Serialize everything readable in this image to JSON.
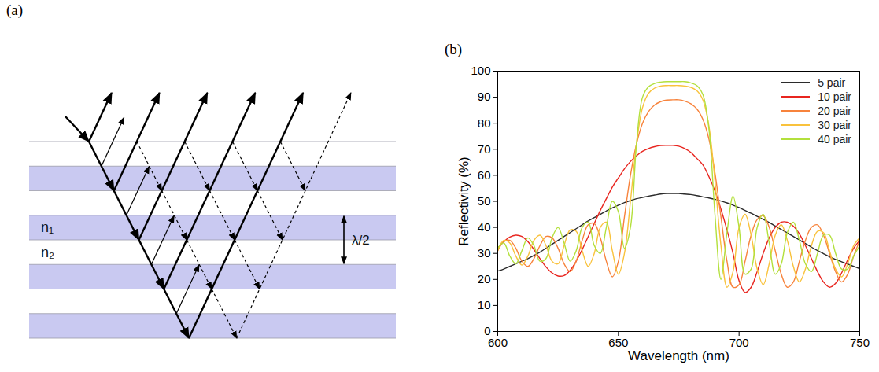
{
  "panel_labels": [
    "(a)",
    "(b)"
  ],
  "diagram": {
    "layer_labels": [
      "n₁",
      "n₂"
    ],
    "period_label": "λ/2"
  },
  "chart_data": {
    "type": "line",
    "x_label": "Wavelength (nm)",
    "y_label": "Reflectivity (%)",
    "xlim": [
      600,
      750
    ],
    "ylim": [
      0,
      100
    ],
    "xticks": [
      600,
      650,
      700,
      750
    ],
    "yticks": [
      0,
      10,
      20,
      30,
      40,
      50,
      60,
      70,
      80,
      90,
      100
    ],
    "grid": false,
    "legend": "top-right",
    "x": [
      600,
      602.5,
      605,
      607.5,
      610,
      612.5,
      615,
      617.5,
      620,
      622.5,
      625,
      627.5,
      630,
      632.5,
      635,
      637.5,
      640,
      642.5,
      645,
      647.5,
      650,
      652.5,
      655,
      657.5,
      660,
      662.5,
      665,
      667.5,
      670,
      672.5,
      675,
      677.5,
      680,
      682.5,
      685,
      687.5,
      690,
      692.5,
      695,
      697.5,
      700,
      702.5,
      705,
      707.5,
      710,
      712.5,
      715,
      717.5,
      720,
      722.5,
      725,
      727.5,
      730,
      732.5,
      735,
      737.5,
      740,
      742.5,
      745,
      747.5,
      750
    ],
    "series": [
      {
        "name": "5 pair",
        "color": "#2b2b2b",
        "values": [
          23.2,
          24,
          25,
          26,
          27,
          28,
          29.2,
          30.5,
          32,
          33.5,
          35,
          36.5,
          38,
          39.5,
          41,
          42.5,
          43.8,
          45,
          46.3,
          47.5,
          48.5,
          49.5,
          50.3,
          51,
          51.5,
          52,
          52.4,
          52.8,
          53,
          53,
          53,
          52.8,
          52.6,
          52.2,
          51.7,
          51.3,
          50.8,
          50.1,
          49.4,
          48.5,
          47.6,
          46.5,
          45.4,
          44.2,
          43.1,
          41.9,
          40.5,
          39.2,
          37.9,
          36.5,
          35.2,
          33.8,
          32.4,
          31.1,
          29.9,
          28.7,
          27.7,
          26.8,
          25.9,
          25,
          24.1
        ]
      },
      {
        "name": "10 pair",
        "color": "#e8251f",
        "values": [
          32,
          34.5,
          36.3,
          37,
          36.5,
          34.5,
          31.5,
          28,
          24.8,
          22.5,
          21.3,
          21.5,
          23.5,
          27,
          31.5,
          36.5,
          41.5,
          46.5,
          51,
          55.5,
          59,
          62.5,
          65.3,
          67.5,
          69.2,
          70.3,
          71,
          71.4,
          71.5,
          71.5,
          71.2,
          70.3,
          68.8,
          66.5,
          64,
          59.5,
          54,
          47,
          39,
          30,
          19.5,
          15,
          17,
          23,
          30,
          36,
          40,
          42,
          42,
          40.5,
          37.5,
          33,
          28,
          23,
          19,
          17,
          18.5,
          22.5,
          27.5,
          32,
          35
        ]
      },
      {
        "name": "20 pair",
        "color": "#f7833c",
        "values": [
          31,
          34.5,
          35,
          32,
          27,
          25,
          28,
          33,
          36.5,
          36,
          32,
          26,
          23,
          27,
          35,
          41,
          41.5,
          36,
          27,
          21,
          27,
          44,
          60,
          72,
          80,
          84.5,
          87,
          88.3,
          88.9,
          89,
          89,
          88.5,
          87.5,
          85.5,
          81.5,
          74,
          61,
          44,
          27,
          17,
          18,
          27,
          37,
          43,
          44.5,
          40,
          31,
          22,
          17,
          19,
          27,
          35,
          40,
          41,
          37,
          30,
          23,
          19,
          22,
          29,
          35
        ]
      },
      {
        "name": "30 pair",
        "color": "#f9c23c",
        "values": [
          31,
          35,
          34,
          29,
          25.5,
          29,
          35,
          37,
          33,
          27,
          26,
          33,
          39,
          38.5,
          31,
          25,
          30,
          40,
          42,
          31,
          22,
          30,
          50,
          72,
          86,
          91.5,
          93.5,
          94.3,
          94.5,
          94.5,
          94.5,
          94.3,
          93.8,
          92.5,
          89,
          79,
          58,
          33,
          17,
          23,
          40,
          45,
          37,
          24,
          18,
          26,
          37,
          41,
          35,
          25,
          19,
          24,
          33,
          38.5,
          38,
          31,
          24,
          21,
          26,
          33,
          36
        ]
      },
      {
        "name": "40 pair",
        "color": "#b3e03c",
        "values": [
          32,
          34,
          29,
          26,
          31,
          36,
          33,
          27,
          28,
          36,
          40,
          34,
          27,
          31,
          40,
          42,
          33,
          30,
          40,
          50,
          46,
          32,
          40,
          72,
          90,
          94,
          95.3,
          95.8,
          96,
          96,
          96,
          96,
          95.5,
          94.5,
          91,
          78,
          45,
          20,
          38,
          52,
          40,
          22,
          24,
          40,
          45,
          34,
          22,
          26,
          38,
          42,
          35,
          26,
          23,
          30,
          37,
          37,
          30,
          24,
          24,
          29,
          33
        ]
      }
    ]
  }
}
